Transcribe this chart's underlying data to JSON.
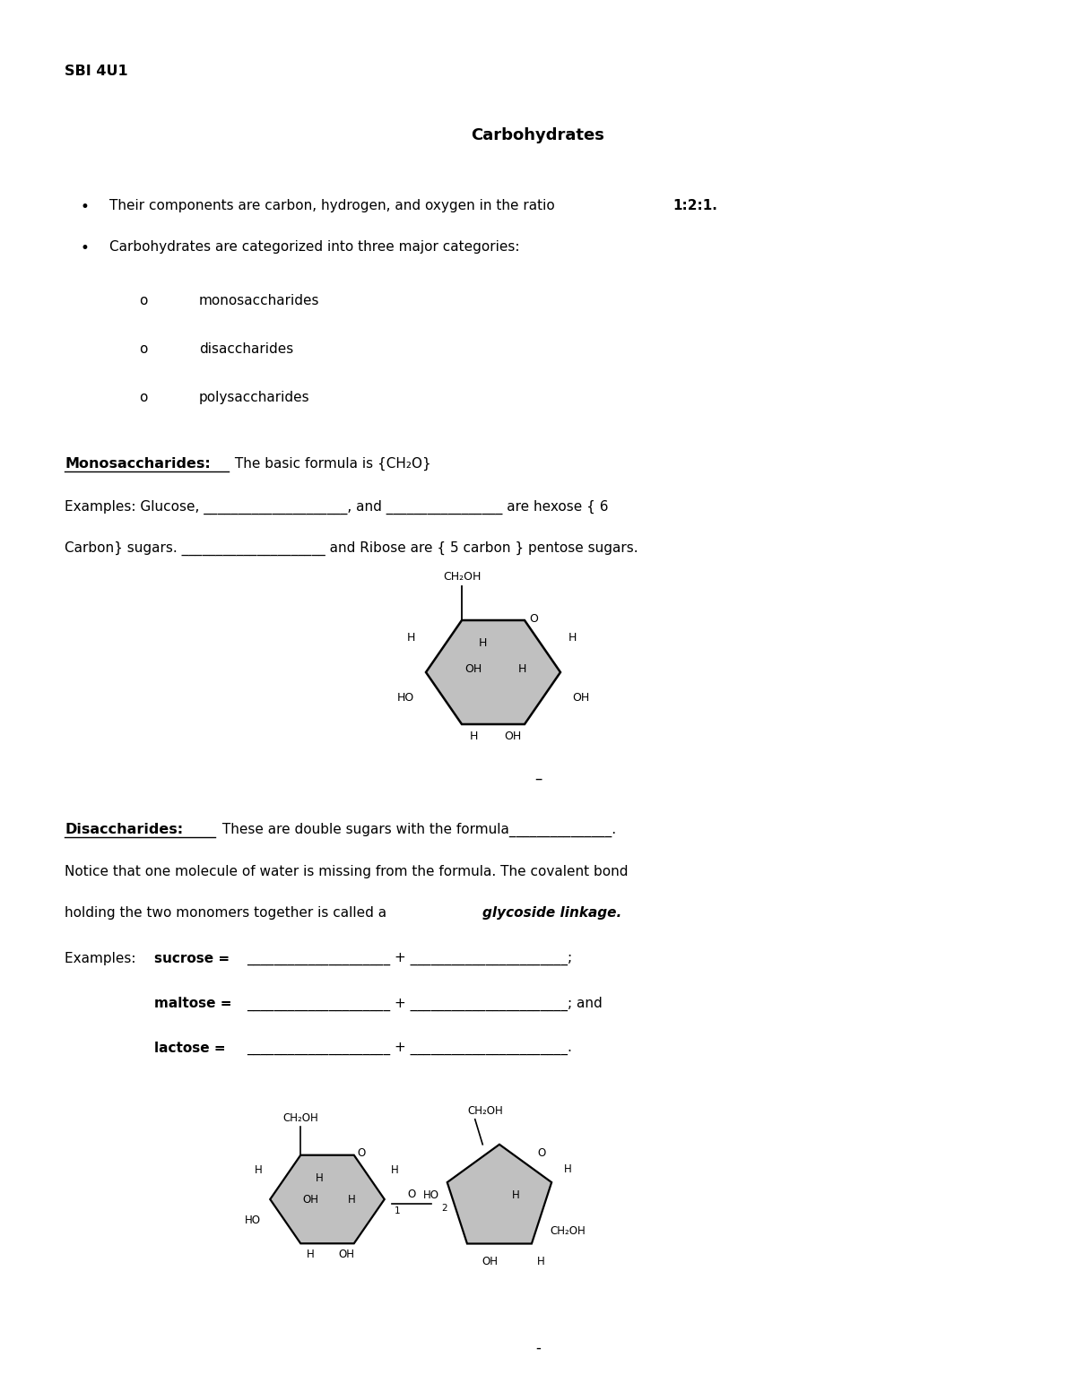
{
  "bg_color": "#ffffff",
  "header": "SBI 4U1",
  "title": "Carbohydrates",
  "sub1": "monosaccharides",
  "sub2": "disaccharides",
  "sub3": "polysaccharides",
  "mono_label": "Monosaccharides:",
  "disac_label": "Disaccharides:",
  "dash_between": "–",
  "bottom_dash": "-",
  "page_width": 12.0,
  "page_height": 15.53
}
